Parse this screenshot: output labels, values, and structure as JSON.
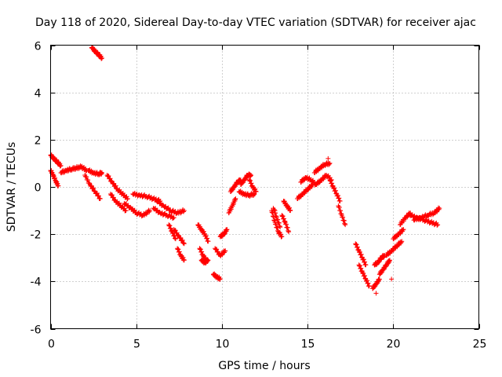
{
  "chart_data": {
    "type": "scatter",
    "title": "Day 118 of 2020, Sidereal Day-to-day VTEC variation (SDTVAR) for receiver ajac",
    "xlabel": "GPS time / hours",
    "ylabel": "SDTVAR / TECUs",
    "xlim": [
      0,
      25
    ],
    "ylim": [
      -6,
      6
    ],
    "xticks": [
      "0",
      "5",
      "10",
      "15",
      "20",
      "25"
    ],
    "yticks": [
      "-6",
      "-4",
      "-2",
      "0",
      "2",
      "4",
      "6"
    ],
    "grid": true,
    "marker": "plus",
    "color": "#ff0000",
    "segments": [
      {
        "x": [
          2.4,
          2.6,
          2.8,
          3.0
        ],
        "y": [
          5.9,
          5.75,
          5.6,
          5.45
        ]
      },
      {
        "x": [
          0.0,
          0.2,
          0.4,
          0.6
        ],
        "y": [
          1.35,
          1.2,
          1.05,
          0.9
        ]
      },
      {
        "x": [
          0.0,
          0.15,
          0.3,
          0.45
        ],
        "y": [
          0.7,
          0.5,
          0.25,
          0.05
        ]
      },
      {
        "x": [
          0.6,
          0.9,
          1.2,
          1.5,
          1.8,
          2.1
        ],
        "y": [
          0.6,
          0.7,
          0.75,
          0.8,
          0.85,
          0.7
        ]
      },
      {
        "x": [
          2.2,
          2.5,
          2.8,
          3.0
        ],
        "y": [
          0.7,
          0.6,
          0.55,
          0.6
        ]
      },
      {
        "x": [
          2.0,
          2.3,
          2.6,
          2.9
        ],
        "y": [
          0.5,
          0.1,
          -0.2,
          -0.5
        ]
      },
      {
        "x": [
          3.3,
          3.6,
          3.9,
          4.2,
          4.5
        ],
        "y": [
          0.5,
          0.2,
          -0.1,
          -0.3,
          -0.5
        ]
      },
      {
        "x": [
          3.5,
          3.8,
          4.1,
          4.4
        ],
        "y": [
          -0.3,
          -0.6,
          -0.8,
          -1.0
        ]
      },
      {
        "x": [
          4.3,
          4.7,
          5.0,
          5.4,
          5.8
        ],
        "y": [
          -0.7,
          -0.9,
          -1.1,
          -1.2,
          -1.0
        ]
      },
      {
        "x": [
          4.8,
          5.2,
          5.6,
          6.0,
          6.4
        ],
        "y": [
          -0.3,
          -0.35,
          -0.4,
          -0.5,
          -0.6
        ]
      },
      {
        "x": [
          6.2,
          6.6,
          7.0,
          7.4,
          7.8
        ],
        "y": [
          -0.6,
          -0.8,
          -1.0,
          -1.1,
          -1.0
        ]
      },
      {
        "x": [
          6.0,
          6.4,
          6.8,
          7.2
        ],
        "y": [
          -0.9,
          -1.1,
          -1.2,
          -1.3
        ]
      },
      {
        "x": [
          6.9,
          7.1,
          7.3
        ],
        "y": [
          -1.6,
          -1.9,
          -2.2
        ]
      },
      {
        "x": [
          7.2,
          7.5,
          7.8
        ],
        "y": [
          -1.8,
          -2.1,
          -2.4
        ]
      },
      {
        "x": [
          7.4,
          7.6,
          7.8
        ],
        "y": [
          -2.6,
          -2.9,
          -3.1
        ]
      },
      {
        "x": [
          8.6,
          8.8,
          9.0,
          9.2
        ],
        "y": [
          -1.6,
          -1.8,
          -2.0,
          -2.3
        ]
      },
      {
        "x": [
          8.7,
          8.9,
          9.1
        ],
        "y": [
          -2.6,
          -2.9,
          -3.1
        ]
      },
      {
        "x": [
          8.8,
          9.0,
          9.2
        ],
        "y": [
          -3.1,
          -3.2,
          -3.1
        ]
      },
      {
        "x": [
          9.5,
          9.7,
          9.9
        ],
        "y": [
          -3.7,
          -3.8,
          -3.9
        ]
      },
      {
        "x": [
          9.6,
          9.9,
          10.2
        ],
        "y": [
          -2.6,
          -2.9,
          -2.7
        ]
      },
      {
        "x": [
          9.9,
          10.1,
          10.3
        ],
        "y": [
          -2.1,
          -2.0,
          -1.8
        ]
      },
      {
        "x": [
          10.4,
          10.6,
          10.8
        ],
        "y": [
          -1.1,
          -0.8,
          -0.5
        ]
      },
      {
        "x": [
          10.5,
          10.7,
          10.9,
          11.1
        ],
        "y": [
          -0.2,
          0.0,
          0.2,
          0.3
        ]
      },
      {
        "x": [
          11.1,
          11.3,
          11.5,
          11.7
        ],
        "y": [
          0.1,
          0.3,
          0.5,
          0.5
        ]
      },
      {
        "x": [
          11.0,
          11.3,
          11.6,
          11.9
        ],
        "y": [
          -0.2,
          -0.3,
          -0.35,
          -0.3
        ]
      },
      {
        "x": [
          11.6,
          11.8,
          12.0
        ],
        "y": [
          0.3,
          0.0,
          -0.2
        ]
      },
      {
        "x": [
          12.9,
          13.1,
          13.3,
          13.5
        ],
        "y": [
          -1.0,
          -1.5,
          -1.9,
          -2.1
        ]
      },
      {
        "x": [
          13.0,
          13.2,
          13.4
        ],
        "y": [
          -0.9,
          -1.3,
          -1.7
        ]
      },
      {
        "x": [
          13.5,
          13.7,
          13.9
        ],
        "y": [
          -1.2,
          -1.5,
          -1.9
        ]
      },
      {
        "x": [
          13.6,
          13.8,
          14.0
        ],
        "y": [
          -0.6,
          -0.8,
          -1.0
        ]
      },
      {
        "x": [
          14.4,
          14.7,
          15.0,
          15.3
        ],
        "y": [
          -0.5,
          -0.3,
          -0.1,
          0.1
        ]
      },
      {
        "x": [
          14.6,
          14.9,
          15.2,
          15.5
        ],
        "y": [
          0.2,
          0.4,
          0.3,
          0.1
        ]
      },
      {
        "x": [
          15.4,
          15.7,
          16.0,
          16.3
        ],
        "y": [
          0.6,
          0.8,
          0.95,
          1.0
        ]
      },
      {
        "x": [
          15.5,
          15.8,
          16.1,
          16.4
        ],
        "y": [
          0.1,
          0.3,
          0.5,
          0.3
        ]
      },
      {
        "x": [
          16.3,
          16.5,
          16.7,
          16.9
        ],
        "y": [
          0.3,
          0.0,
          -0.3,
          -0.6
        ]
      },
      {
        "x": [
          16.8,
          17.0,
          17.2
        ],
        "y": [
          -0.8,
          -1.2,
          -1.6
        ]
      },
      {
        "x": [
          17.8,
          18.0,
          18.2,
          18.4
        ],
        "y": [
          -2.4,
          -2.7,
          -3.0,
          -3.3
        ]
      },
      {
        "x": [
          18.0,
          18.2,
          18.4,
          18.6
        ],
        "y": [
          -3.3,
          -3.6,
          -3.9,
          -4.2
        ]
      },
      {
        "x": [
          18.8,
          19.0,
          19.2
        ],
        "y": [
          -4.3,
          -4.1,
          -3.9
        ]
      },
      {
        "x": [
          18.9,
          19.1,
          19.3,
          19.5
        ],
        "y": [
          -3.3,
          -3.2,
          -3.0,
          -2.9
        ]
      },
      {
        "x": [
          19.2,
          19.4,
          19.6,
          19.8
        ],
        "y": [
          -3.7,
          -3.5,
          -3.3,
          -3.1
        ]
      },
      {
        "x": [
          19.6,
          19.9,
          20.2,
          20.5
        ],
        "y": [
          -2.9,
          -2.7,
          -2.5,
          -2.3
        ]
      },
      {
        "x": [
          20.0,
          20.3,
          20.6
        ],
        "y": [
          -2.2,
          -2.0,
          -1.8
        ]
      },
      {
        "x": [
          20.4,
          20.7,
          21.0
        ],
        "y": [
          -1.6,
          -1.3,
          -1.1
        ]
      },
      {
        "x": [
          21.0,
          21.4,
          21.8,
          22.2,
          22.6
        ],
        "y": [
          -1.2,
          -1.3,
          -1.4,
          -1.5,
          -1.6
        ]
      },
      {
        "x": [
          21.2,
          21.6,
          22.0,
          22.4,
          22.7
        ],
        "y": [
          -1.4,
          -1.3,
          -1.2,
          -1.1,
          -0.9
        ]
      }
    ],
    "points": {
      "x": [
        16.2,
        19.0,
        19.9,
        13.1,
        9.5
      ],
      "y": [
        1.2,
        -4.5,
        -3.9,
        -1.0,
        -3.7
      ]
    }
  }
}
